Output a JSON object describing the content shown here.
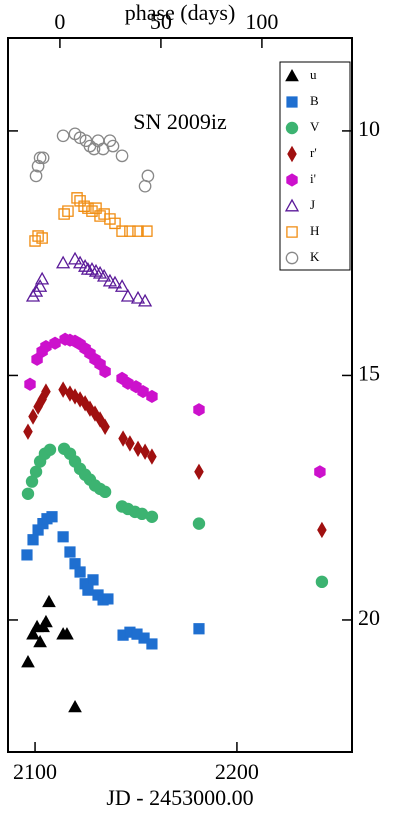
{
  "chart_data": {
    "type": "scatter",
    "xlabel": "JD - 2453000.00",
    "x2label": "phase (days)",
    "annotation": "SN 2009iz",
    "xlim": [
      2086.6,
      2257
    ],
    "xticks": [
      2100,
      2200
    ],
    "x2lim": [
      -25.7,
      144.6
    ],
    "x2ticks": [
      0,
      50,
      100
    ],
    "ylim": [
      8.1,
      22.7
    ],
    "yticks": [
      10,
      15,
      20
    ],
    "y_inverted": true,
    "legend": "upper right",
    "series": [
      {
        "name": "u",
        "color": "#000000",
        "marker": "triangle",
        "filled": true,
        "x": [
          2096.5,
          2099,
          2101,
          2102.5,
          2104,
          2105.4,
          2106.9,
          2113.9,
          2115.8,
          2119.8
        ],
        "values": [
          20.86,
          20.29,
          20.14,
          20.45,
          20.14,
          20.04,
          19.63,
          20.29,
          20.29,
          21.78
        ]
      },
      {
        "name": "B",
        "color": "#1f6fd0",
        "marker": "square",
        "filled": true,
        "x": [
          2096,
          2099,
          2101.5,
          2103.9,
          2105.9,
          2108.4,
          2113.9,
          2117.3,
          2119.8,
          2122.3,
          2124.8,
          2126.2,
          2128.7,
          2131.2,
          2133.7,
          2136.1,
          2143.6,
          2147,
          2150.5,
          2154,
          2157.9,
          2181.2
        ],
        "values": [
          18.67,
          18.36,
          18.16,
          18.03,
          17.93,
          17.89,
          18.3,
          18.61,
          18.85,
          19.02,
          19.26,
          19.39,
          19.18,
          19.49,
          19.59,
          19.57,
          20.31,
          20.25,
          20.29,
          20.37,
          20.49,
          20.18
        ]
      },
      {
        "name": "V",
        "color": "#3cb371",
        "marker": "circle",
        "filled": true,
        "x": [
          2096.5,
          2098.5,
          2100.5,
          2102.5,
          2104.9,
          2107.4,
          2114.4,
          2117.3,
          2119.8,
          2122.3,
          2124.8,
          2127.2,
          2129.7,
          2132.2,
          2134.7,
          2143.1,
          2146,
          2149.5,
          2153,
          2157.9,
          2181.2,
          2242.1
        ],
        "values": [
          17.42,
          17.17,
          16.97,
          16.76,
          16.6,
          16.52,
          16.5,
          16.6,
          16.76,
          16.91,
          17.03,
          17.13,
          17.25,
          17.32,
          17.38,
          17.68,
          17.73,
          17.79,
          17.83,
          17.89,
          18.03,
          19.22
        ]
      },
      {
        "name": "r'",
        "color": "#a01010",
        "marker": "diamond",
        "filled": true,
        "x": [
          2096.5,
          2099,
          2101.5,
          2103.5,
          2105.4,
          2113.9,
          2117.3,
          2119.8,
          2122.3,
          2124.8,
          2127.2,
          2129.7,
          2132.2,
          2134.7,
          2143.6,
          2147,
          2151,
          2154.5,
          2157.9,
          2181.2,
          2242.1
        ],
        "values": [
          16.15,
          15.84,
          15.64,
          15.49,
          15.33,
          15.29,
          15.37,
          15.43,
          15.49,
          15.57,
          15.68,
          15.78,
          15.9,
          16.05,
          16.29,
          16.39,
          16.5,
          16.56,
          16.66,
          16.97,
          18.16
        ]
      },
      {
        "name": "i'",
        "color": "#cc11cc",
        "marker": "hexagon",
        "filled": true,
        "x": [
          2097.5,
          2101,
          2103.5,
          2105.4,
          2109.9,
          2114.9,
          2117.3,
          2119.8,
          2122.3,
          2124.8,
          2127.2,
          2129.7,
          2132.2,
          2134.7,
          2143.1,
          2146,
          2150,
          2153.5,
          2157.9,
          2181.2,
          2241.1
        ],
        "values": [
          15.18,
          14.67,
          14.51,
          14.41,
          14.34,
          14.26,
          14.28,
          14.3,
          14.36,
          14.45,
          14.55,
          14.67,
          14.77,
          14.92,
          15.06,
          15.16,
          15.23,
          15.33,
          15.43,
          15.7,
          16.97
        ]
      },
      {
        "name": "J",
        "color": "#5b1a99",
        "marker": "triangle",
        "filled": false,
        "x": [
          2099,
          2100.5,
          2102.5,
          2103.5,
          2113.9,
          2119.8,
          2122.3,
          2124.8,
          2126.2,
          2128.2,
          2130.2,
          2132.2,
          2134.2,
          2137.1,
          2139.6,
          2143.1,
          2146,
          2151,
          2154.5
        ],
        "values": [
          13.38,
          13.28,
          13.18,
          13.03,
          12.7,
          12.62,
          12.7,
          12.77,
          12.83,
          12.83,
          12.87,
          12.91,
          12.97,
          13.07,
          13.11,
          13.18,
          13.38,
          13.42,
          13.48
        ]
      },
      {
        "name": "H",
        "color": "#f08c10",
        "marker": "square",
        "filled": false,
        "x": [
          2100,
          2101.5,
          2103.5,
          2114.4,
          2116.3,
          2120.8,
          2122.3,
          2124.3,
          2126.2,
          2128.2,
          2130.2,
          2132.2,
          2134.2,
          2137.1,
          2139.6,
          2143.1,
          2147,
          2151,
          2155.4
        ],
        "values": [
          12.25,
          12.15,
          12.19,
          11.7,
          11.64,
          11.37,
          11.43,
          11.54,
          11.58,
          11.64,
          11.58,
          11.74,
          11.7,
          11.8,
          11.89,
          12.05,
          12.05,
          12.05,
          12.05
        ]
      },
      {
        "name": "K",
        "color": "#888888",
        "marker": "circle",
        "filled": false,
        "x": [
          2100.5,
          2101.5,
          2102.5,
          2104,
          2113.9,
          2119.8,
          2122.3,
          2125.2,
          2127.2,
          2129.2,
          2131.2,
          2133.7,
          2137.1,
          2138.6,
          2143.1,
          2154.5,
          2155.9
        ],
        "values": [
          10.92,
          10.72,
          10.55,
          10.55,
          10.1,
          10.06,
          10.14,
          10.2,
          10.31,
          10.37,
          10.2,
          10.37,
          10.2,
          10.31,
          10.51,
          11.13,
          10.92
        ]
      }
    ]
  }
}
